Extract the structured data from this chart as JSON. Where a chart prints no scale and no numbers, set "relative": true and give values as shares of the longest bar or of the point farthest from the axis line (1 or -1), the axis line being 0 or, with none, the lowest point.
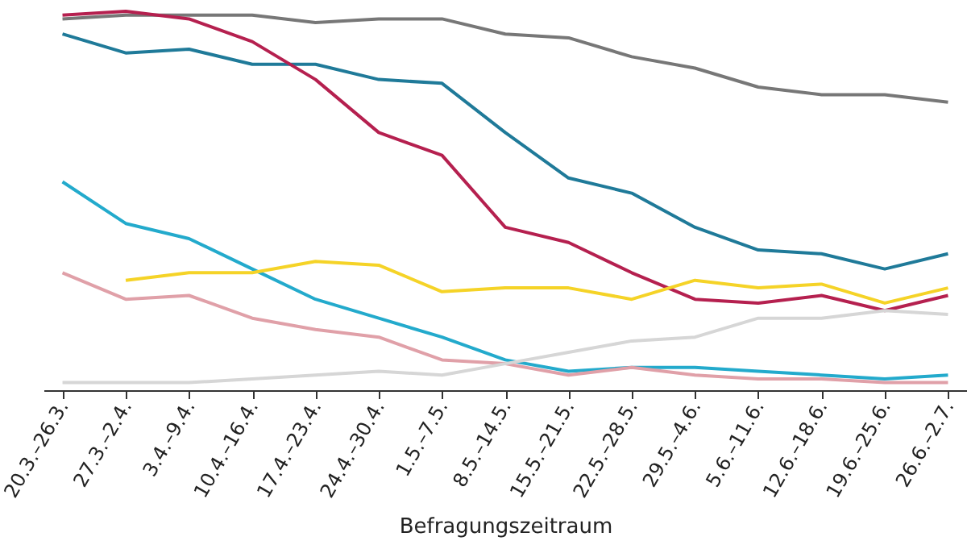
{
  "chart_data": {
    "type": "line",
    "relative": true,
    "xlabel": "Befragungszeitraum",
    "legend": false,
    "categories": [
      "20.3.–26.3.",
      "27.3.–2.4.",
      "3.4.–9.4.",
      "10.4.–16.4.",
      "17.4.–23.4.",
      "24.4.–30.4.",
      "1.5.–7.5.",
      "8.5.–14.5.",
      "15.5.–21.5.",
      "22.5.–28.5.",
      "29.5.–4.6.",
      "5.6.–11.6.",
      "12.6.–18.6.",
      "19.6.–25.6.",
      "26.6.–2.7."
    ],
    "series": [
      {
        "color": "#777777",
        "values": [
          0.98,
          0.99,
          0.99,
          0.99,
          0.97,
          0.98,
          0.98,
          0.94,
          0.93,
          0.88,
          0.85,
          0.8,
          0.78,
          0.78,
          0.76
        ]
      },
      {
        "color": "#1f7a99",
        "values": [
          0.94,
          0.89,
          0.9,
          0.86,
          0.86,
          0.82,
          0.81,
          0.68,
          0.56,
          0.52,
          0.43,
          0.37,
          0.36,
          0.32,
          0.36
        ]
      },
      {
        "color": "#b5204f",
        "values": [
          0.99,
          1,
          0.98,
          0.92,
          0.82,
          0.68,
          0.62,
          0.43,
          0.39,
          0.31,
          0.24,
          0.23,
          0.25,
          0.21,
          0.25
        ]
      },
      {
        "color": "#23aacc",
        "values": [
          0.55,
          0.44,
          0.4,
          0.32,
          0.24,
          0.19,
          0.14,
          0.08,
          0.05,
          0.06,
          0.06,
          0.05,
          0.04,
          0.03,
          0.04
        ]
      },
      {
        "color": "#f5d327",
        "values": [
          null,
          0.29,
          0.31,
          0.31,
          0.34,
          0.33,
          0.26,
          0.27,
          0.27,
          0.24,
          0.29,
          0.27,
          0.28,
          0.23,
          0.27
        ]
      },
      {
        "color": "#e0a0a8",
        "values": [
          0.31,
          0.24,
          0.25,
          0.19,
          0.16,
          0.14,
          0.08,
          0.07,
          0.04,
          0.06,
          0.04,
          0.03,
          0.03,
          0.02,
          0.02
        ]
      },
      {
        "color": "#d6d6d6",
        "values": [
          0.02,
          0.02,
          0.02,
          0.03,
          0.04,
          0.05,
          0.04,
          0.07,
          0.1,
          0.13,
          0.14,
          0.19,
          0.19,
          0.21,
          0.2
        ]
      }
    ]
  }
}
